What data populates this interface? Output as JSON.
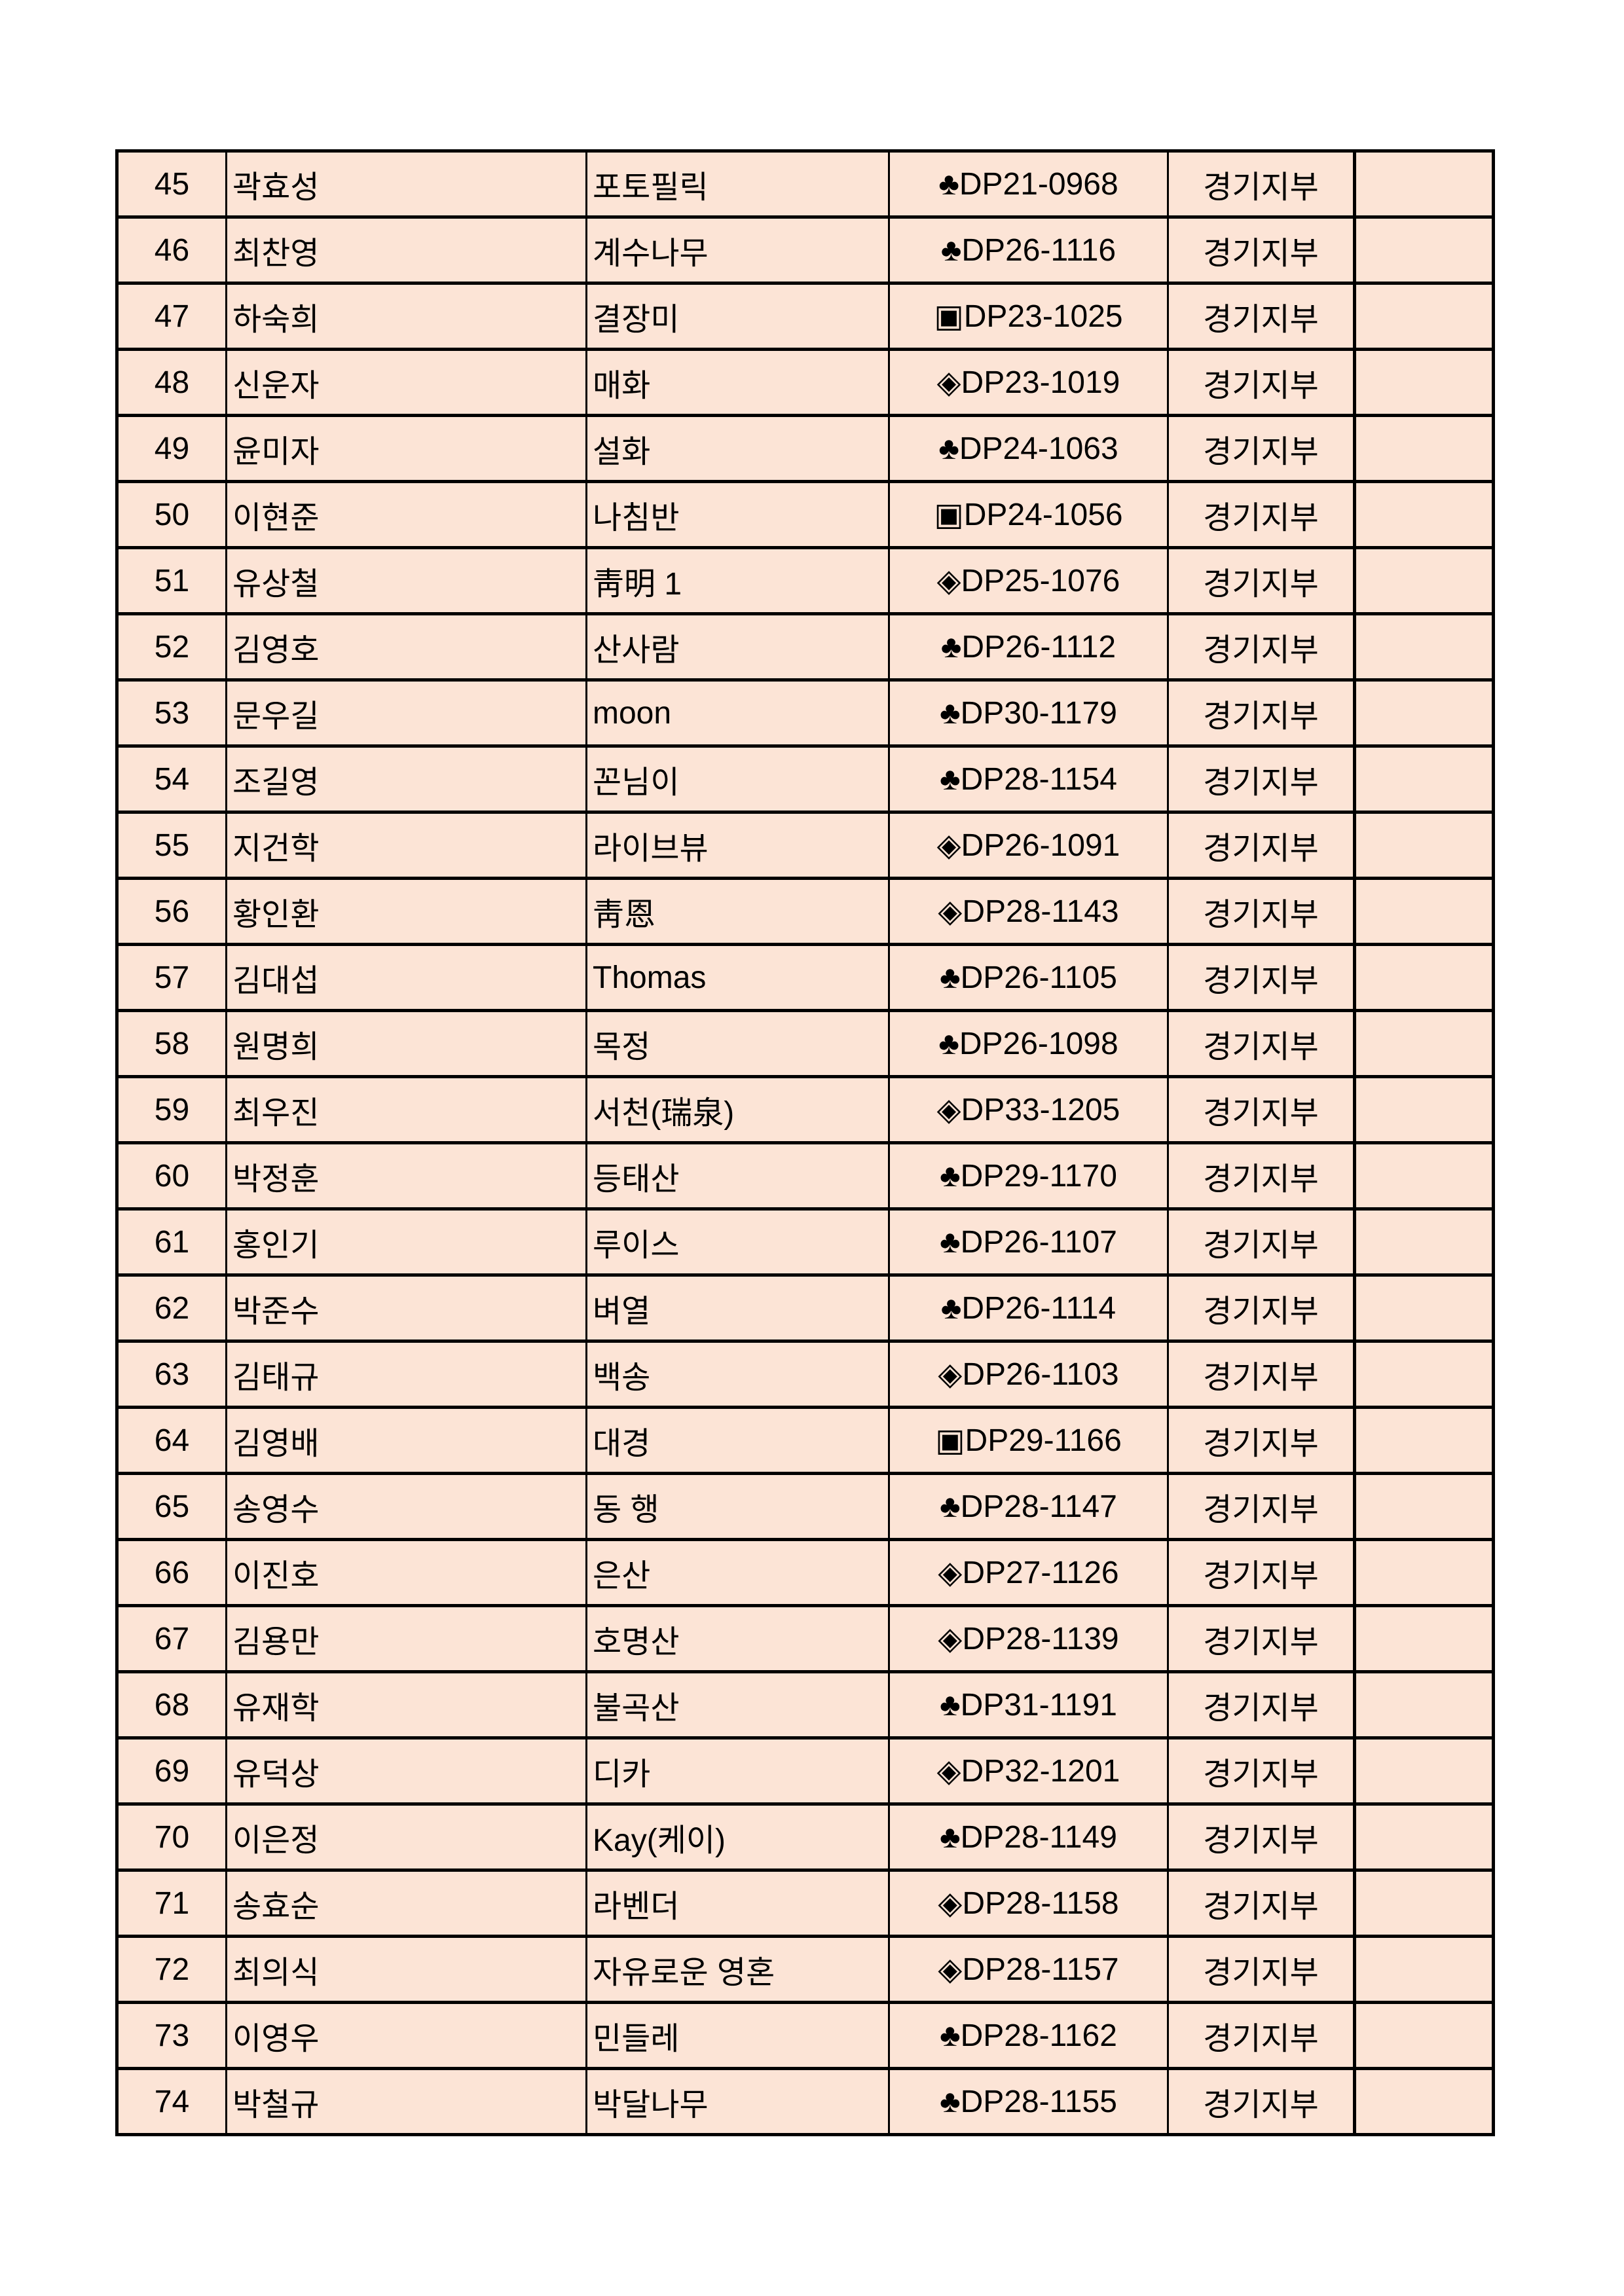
{
  "background_color": "#fce4d6",
  "rows": [
    {
      "no": "45",
      "name": "곽효성",
      "nickname": "포토필릭",
      "code": "♣DP21-0968",
      "branch": "경기지부",
      "note": ""
    },
    {
      "no": "46",
      "name": "최찬영",
      "nickname": "계수나무",
      "code": "♣DP26-1116",
      "branch": "경기지부",
      "note": ""
    },
    {
      "no": "47",
      "name": "하숙희",
      "nickname": "결장미",
      "code": "▣DP23-1025",
      "branch": "경기지부",
      "note": ""
    },
    {
      "no": "48",
      "name": "신운자",
      "nickname": "매화",
      "code": "◈DP23-1019",
      "branch": "경기지부",
      "note": ""
    },
    {
      "no": "49",
      "name": "윤미자",
      "nickname": "설화",
      "code": "♣DP24-1063",
      "branch": "경기지부",
      "note": ""
    },
    {
      "no": "50",
      "name": "이현준",
      "nickname": "나침반",
      "code": "▣DP24-1056",
      "branch": "경기지부",
      "note": ""
    },
    {
      "no": "51",
      "name": "유상철",
      "nickname": "靑明 1",
      "code": "◈DP25-1076",
      "branch": "경기지부",
      "note": ""
    },
    {
      "no": "52",
      "name": "김영호",
      "nickname": "산사람",
      "code": "♣DP26-1112",
      "branch": "경기지부",
      "note": ""
    },
    {
      "no": "53",
      "name": "문우길",
      "nickname": "moon",
      "code": "♣DP30-1179",
      "branch": "경기지부",
      "note": ""
    },
    {
      "no": "54",
      "name": "조길영",
      "nickname": "꼰님이",
      "code": "♣DP28-1154",
      "branch": "경기지부",
      "note": ""
    },
    {
      "no": "55",
      "name": "지건학",
      "nickname": "라이브뷰",
      "code": "◈DP26-1091",
      "branch": "경기지부",
      "note": ""
    },
    {
      "no": "56",
      "name": "황인환",
      "nickname": "靑恩",
      "code": "◈DP28-1143",
      "branch": "경기지부",
      "note": ""
    },
    {
      "no": "57",
      "name": "김대섭",
      "nickname": "Thomas",
      "code": "♣DP26-1105",
      "branch": "경기지부",
      "note": ""
    },
    {
      "no": "58",
      "name": "원명희",
      "nickname": "목정",
      "code": "♣DP26-1098",
      "branch": "경기지부",
      "note": ""
    },
    {
      "no": "59",
      "name": "최우진",
      "nickname": "서천(瑞泉)",
      "code": "◈DP33-1205",
      "branch": "경기지부",
      "note": ""
    },
    {
      "no": "60",
      "name": "박정훈",
      "nickname": "등태산",
      "code": "♣DP29-1170",
      "branch": "경기지부",
      "note": ""
    },
    {
      "no": "61",
      "name": "홍인기",
      "nickname": "루이스",
      "code": "♣DP26-1107",
      "branch": "경기지부",
      "note": ""
    },
    {
      "no": "62",
      "name": "박준수",
      "nickname": "벼열",
      "code": "♣DP26-1114",
      "branch": "경기지부",
      "note": ""
    },
    {
      "no": "63",
      "name": "김태규",
      "nickname": "백송",
      "code": "◈DP26-1103",
      "branch": "경기지부",
      "note": ""
    },
    {
      "no": "64",
      "name": "김영배",
      "nickname": "대경",
      "code": "▣DP29-1166",
      "branch": "경기지부",
      "note": ""
    },
    {
      "no": "65",
      "name": "송영수",
      "nickname": "동  행",
      "code": "♣DP28-1147",
      "branch": "경기지부",
      "note": ""
    },
    {
      "no": "66",
      "name": "이진호",
      "nickname": "은산",
      "code": "◈DP27-1126",
      "branch": "경기지부",
      "note": ""
    },
    {
      "no": "67",
      "name": "김용만",
      "nickname": "호명산",
      "code": "◈DP28-1139",
      "branch": "경기지부",
      "note": ""
    },
    {
      "no": "68",
      "name": "유재학",
      "nickname": "불곡산",
      "code": "♣DP31-1191",
      "branch": "경기지부",
      "note": ""
    },
    {
      "no": "69",
      "name": "유덕상",
      "nickname": "디카",
      "code": "◈DP32-1201",
      "branch": "경기지부",
      "note": ""
    },
    {
      "no": "70",
      "name": "이은정",
      "nickname": "Kay(케이)",
      "code": "♣DP28-1149",
      "branch": "경기지부",
      "note": ""
    },
    {
      "no": "71",
      "name": "송효순",
      "nickname": "라벤더",
      "code": "◈DP28-1158",
      "branch": "경기지부",
      "note": ""
    },
    {
      "no": "72",
      "name": "최의식",
      "nickname": "자유로운 영혼",
      "code": "◈DP28-1157",
      "branch": "경기지부",
      "note": ""
    },
    {
      "no": "73",
      "name": "이영우",
      "nickname": "민들레",
      "code": "♣DP28-1162",
      "branch": "경기지부",
      "note": ""
    },
    {
      "no": "74",
      "name": "박철규",
      "nickname": "박달나무",
      "code": "♣DP28-1155",
      "branch": "경기지부",
      "note": ""
    }
  ]
}
